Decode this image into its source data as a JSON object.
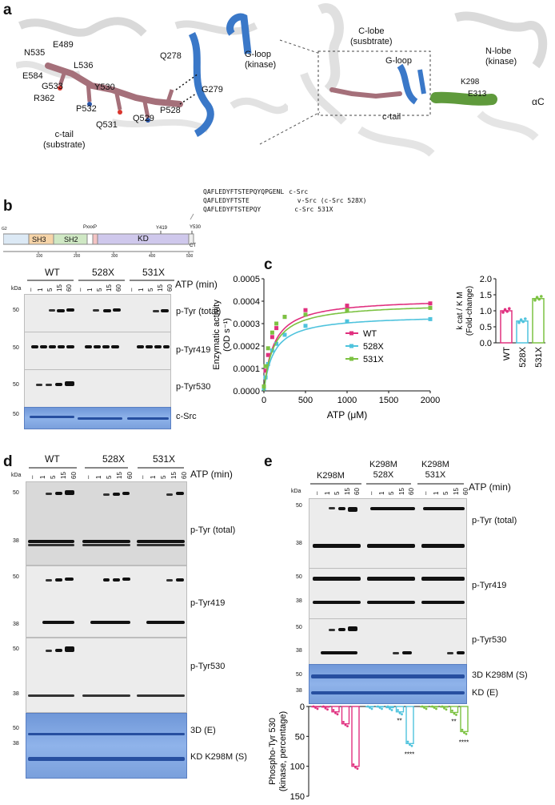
{
  "panels": {
    "a": "a",
    "b": "b",
    "c": "c",
    "d": "d",
    "e": "e"
  },
  "a": {
    "residues": [
      "N535",
      "E489",
      "L536",
      "E584",
      "G533",
      "Y530",
      "R362",
      "P532",
      "Q531",
      "Q529",
      "P528",
      "Q278",
      "G279"
    ],
    "c_tail": "c-tail\n(substrate)",
    "g_loop_kinase": "G-loop\n(kinase)",
    "c_lobe": "C-lobe\n(susbtrate)",
    "g_loop": "G-loop",
    "n_lobe": "N-lobe\n(kinase)",
    "c_tail_right": "c-tail",
    "k298": "K298",
    "e313": "E313",
    "alpha_c": "αC"
  },
  "b": {
    "sequences": [
      {
        "seq": "QAFLEDYFTSTEPQYQPGENL",
        "name": "c-Src"
      },
      {
        "seq": "QAFLEDYFTSTE",
        "name": "v-Src (c-Src 528X)"
      },
      {
        "seq": "QAFLEDYFTSTEPQY",
        "name": "c-Src 531X"
      }
    ],
    "domains": {
      "g2": "G2",
      "sh3": "SH3",
      "sh2": "SH2",
      "pxxp": "PxxxP",
      "kd": "KD",
      "y419": "Y419",
      "y530": "Y530",
      "ct": "CT"
    },
    "axis_ticks": [
      "100",
      "200",
      "300",
      "400",
      "500"
    ],
    "groups": [
      "WT",
      "528X",
      "531X"
    ],
    "lanes": [
      "–",
      "1",
      "5",
      "15",
      "60"
    ],
    "time_label": "ATP (min)",
    "kda": "kDa",
    "mw": "50",
    "blots": [
      "p-Tyr (total)",
      "p-Tyr419",
      "p-Tyr530",
      "c-Src"
    ]
  },
  "c": {
    "ylabel": "Enzymatic activity\n(OD s⁻¹)",
    "xlabel": "ATP (μM)",
    "right_ylabel": "k cat / K M\n(Fold-change)",
    "colors": {
      "WT": "#e0307f",
      "528X": "#4fc3dd",
      "531X": "#7cc242"
    }
  },
  "chart_data": [
    {
      "type": "line",
      "title": "",
      "xlabel": "ATP (μM)",
      "ylabel": "Enzymatic activity (OD s⁻¹)",
      "xlim": [
        0,
        2000
      ],
      "ylim": [
        0,
        0.0005
      ],
      "xticks": [
        0,
        500,
        1000,
        1500,
        2000
      ],
      "yticks": [
        0.0,
        0.0001,
        0.0002,
        0.0003,
        0.0004,
        0.0005
      ],
      "legend_position": "center-right",
      "series": [
        {
          "name": "WT",
          "color": "#e0307f",
          "x": [
            0,
            20,
            50,
            100,
            150,
            250,
            500,
            1000,
            2000
          ],
          "y": [
            2e-05,
            9e-05,
            0.00016,
            0.00024,
            0.00028,
            0.00033,
            0.00036,
            0.00038,
            0.00039
          ]
        },
        {
          "name": "528X",
          "color": "#4fc3dd",
          "x": [
            0,
            20,
            50,
            100,
            150,
            250,
            500,
            1000,
            2000
          ],
          "y": [
            1e-05,
            6e-05,
            0.00012,
            0.00018,
            0.00021,
            0.00025,
            0.00029,
            0.00031,
            0.00032
          ]
        },
        {
          "name": "531X",
          "color": "#7cc242",
          "x": [
            0,
            20,
            50,
            100,
            150,
            250,
            500,
            1000,
            2000
          ],
          "y": [
            2e-05,
            0.00011,
            0.00019,
            0.00026,
            0.0003,
            0.00033,
            0.00034,
            0.00036,
            0.00037
          ]
        }
      ]
    },
    {
      "type": "bar",
      "title": "",
      "categories": [
        "WT",
        "528X",
        "531X"
      ],
      "values": [
        1.0,
        0.68,
        1.38
      ],
      "colors": [
        "#e0307f",
        "#4fc3dd",
        "#7cc242"
      ],
      "ylabel": "kcat / KM (Fold-change)",
      "ylim": [
        0,
        2.0
      ],
      "yticks": [
        0,
        0.5,
        1.0,
        1.5,
        2.0
      ]
    },
    {
      "type": "bar",
      "title": "",
      "orientation": "downward",
      "ylabel": "Phospho-Tyr 530 (kinase, percentage)",
      "ylim": [
        0,
        150
      ],
      "yticks": [
        0,
        50,
        100,
        150
      ],
      "groups": [
        "K298M",
        "K298M 528X",
        "K298M 531X"
      ],
      "time_points": [
        "–",
        "1",
        "5",
        "15",
        "60"
      ],
      "series": [
        {
          "name": "K298M",
          "color": "#e0307f",
          "values": [
            0,
            1,
            9,
            29,
            100
          ]
        },
        {
          "name": "K298M 528X",
          "color": "#4fc3dd",
          "values": [
            0,
            0,
            2,
            9,
            62
          ]
        },
        {
          "name": "K298M 531X",
          "color": "#7cc242",
          "values": [
            0,
            0,
            1,
            10,
            42
          ]
        }
      ],
      "annotations": [
        "**",
        "****",
        "**",
        "****"
      ]
    }
  ],
  "d": {
    "groups": [
      "WT",
      "528X",
      "531X"
    ],
    "lanes": [
      "–",
      "1",
      "5",
      "15",
      "60"
    ],
    "time_label": "ATP (min)",
    "kda": "kDa",
    "mw": [
      "50",
      "38"
    ],
    "blots": [
      "p-Tyr (total)",
      "p-Tyr419",
      "p-Tyr530",
      "3D (E)",
      "KD K298M (S)"
    ]
  },
  "e": {
    "groups": [
      "K298M",
      "K298M\n528X",
      "K298M\n531X"
    ],
    "lanes": [
      "–",
      "1",
      "5",
      "15",
      "60"
    ],
    "time_label": "ATP (min)",
    "kda": "kDa",
    "mw": [
      "50",
      "38"
    ],
    "blots": [
      "p-Tyr (total)",
      "p-Tyr419",
      "p-Tyr530",
      "3D K298M (S)",
      "KD (E)"
    ],
    "stars": [
      "**",
      "****",
      "**",
      "****"
    ]
  }
}
